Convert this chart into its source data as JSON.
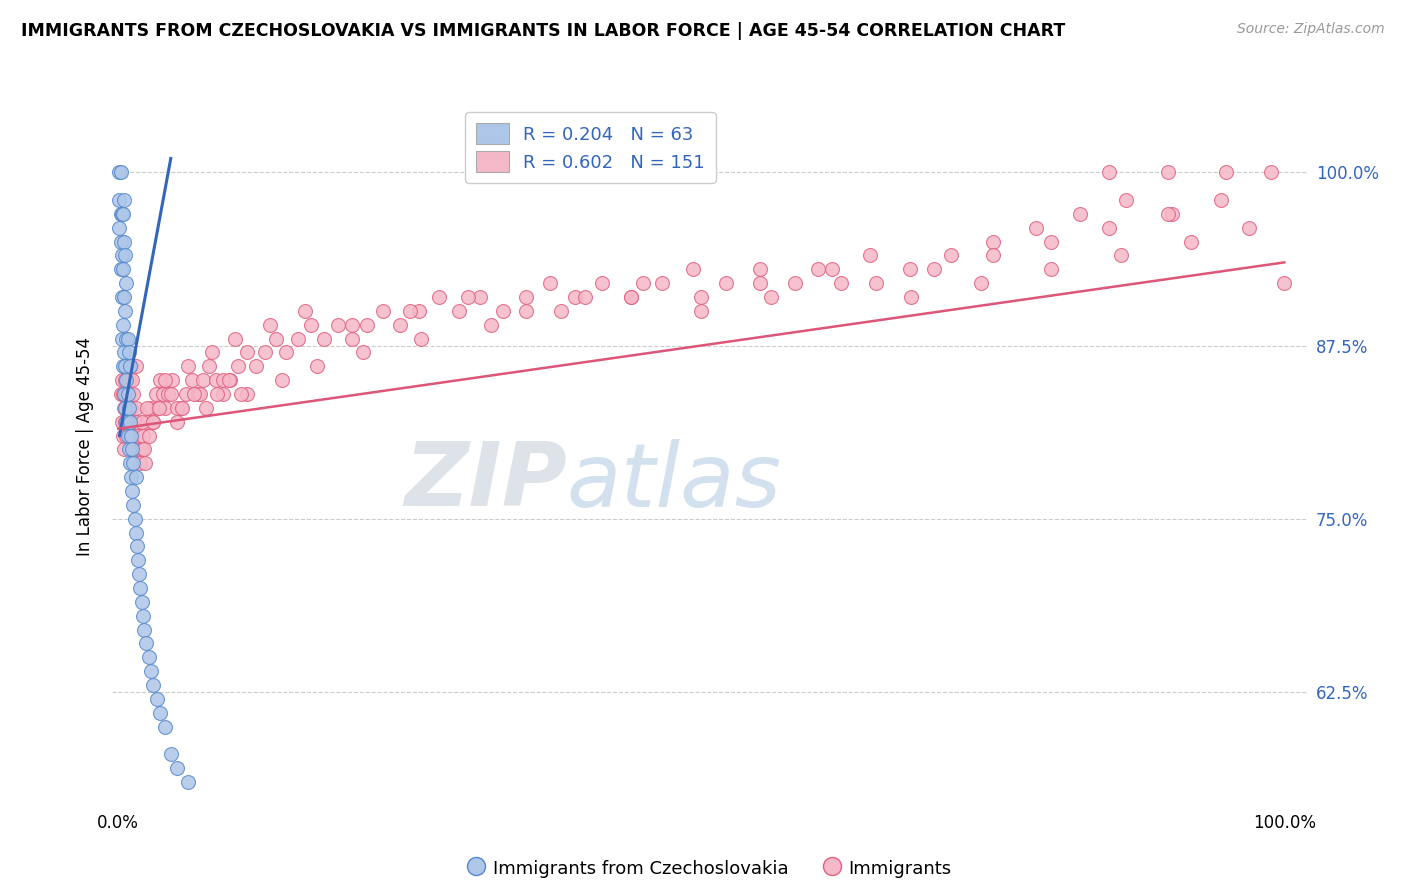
{
  "title": "IMMIGRANTS FROM CZECHOSLOVAKIA VS IMMIGRANTS IN LABOR FORCE | AGE 45-54 CORRELATION CHART",
  "source": "Source: ZipAtlas.com",
  "ylabel": "In Labor Force | Age 45-54",
  "xlim": [
    -0.005,
    1.02
  ],
  "ylim": [
    0.545,
    1.06
  ],
  "ytick_values": [
    0.625,
    0.75,
    0.875,
    1.0
  ],
  "ytick_labels": [
    "62.5%",
    "75.0%",
    "87.5%",
    "100.0%"
  ],
  "legend1_label": "R = 0.204   N = 63",
  "legend2_label": "R = 0.602   N = 151",
  "legend_label_blue": "Immigrants from Czechoslovakia",
  "legend_label_pink": "Immigrants",
  "blue_color": "#aec6e8",
  "blue_edge_color": "#5588cc",
  "blue_line_color": "#3366bb",
  "pink_color": "#f5b8c8",
  "pink_edge_color": "#e06080",
  "pink_line_color": "#dd5577",
  "watermark_zip": "ZIP",
  "watermark_atlas": "atlas",
  "blue_x": [
    0.001,
    0.001,
    0.001,
    0.002,
    0.002,
    0.002,
    0.002,
    0.003,
    0.003,
    0.003,
    0.003,
    0.004,
    0.004,
    0.004,
    0.004,
    0.005,
    0.005,
    0.005,
    0.005,
    0.005,
    0.006,
    0.006,
    0.006,
    0.006,
    0.007,
    0.007,
    0.007,
    0.007,
    0.008,
    0.008,
    0.008,
    0.009,
    0.009,
    0.009,
    0.01,
    0.01,
    0.01,
    0.011,
    0.011,
    0.012,
    0.012,
    0.013,
    0.013,
    0.014,
    0.015,
    0.015,
    0.016,
    0.017,
    0.018,
    0.019,
    0.02,
    0.021,
    0.022,
    0.024,
    0.026,
    0.028,
    0.03,
    0.033,
    0.036,
    0.04,
    0.045,
    0.05,
    0.06
  ],
  "blue_y": [
    0.96,
    0.98,
    1.0,
    0.93,
    0.95,
    0.97,
    1.0,
    0.88,
    0.91,
    0.94,
    0.97,
    0.86,
    0.89,
    0.93,
    0.97,
    0.84,
    0.87,
    0.91,
    0.95,
    0.98,
    0.83,
    0.86,
    0.9,
    0.94,
    0.82,
    0.85,
    0.88,
    0.92,
    0.81,
    0.84,
    0.88,
    0.8,
    0.83,
    0.87,
    0.79,
    0.82,
    0.86,
    0.78,
    0.81,
    0.77,
    0.8,
    0.76,
    0.79,
    0.75,
    0.74,
    0.78,
    0.73,
    0.72,
    0.71,
    0.7,
    0.69,
    0.68,
    0.67,
    0.66,
    0.65,
    0.64,
    0.63,
    0.62,
    0.61,
    0.6,
    0.58,
    0.57,
    0.56
  ],
  "pink_x": [
    0.002,
    0.003,
    0.003,
    0.004,
    0.004,
    0.005,
    0.005,
    0.006,
    0.006,
    0.007,
    0.007,
    0.008,
    0.008,
    0.009,
    0.009,
    0.01,
    0.01,
    0.011,
    0.011,
    0.012,
    0.012,
    0.013,
    0.013,
    0.014,
    0.015,
    0.015,
    0.016,
    0.017,
    0.018,
    0.019,
    0.02,
    0.021,
    0.022,
    0.023,
    0.025,
    0.026,
    0.028,
    0.03,
    0.032,
    0.034,
    0.036,
    0.038,
    0.04,
    0.043,
    0.046,
    0.05,
    0.054,
    0.058,
    0.063,
    0.068,
    0.073,
    0.078,
    0.084,
    0.09,
    0.096,
    0.103,
    0.11,
    0.118,
    0.126,
    0.135,
    0.144,
    0.154,
    0.165,
    0.176,
    0.188,
    0.2,
    0.213,
    0.227,
    0.242,
    0.258,
    0.275,
    0.292,
    0.31,
    0.33,
    0.35,
    0.37,
    0.392,
    0.415,
    0.44,
    0.466,
    0.493,
    0.521,
    0.55,
    0.58,
    0.612,
    0.645,
    0.679,
    0.714,
    0.75,
    0.787,
    0.825,
    0.864,
    0.904,
    0.946,
    0.989,
    0.85,
    0.9,
    0.95,
    1.0,
    0.04,
    0.06,
    0.08,
    0.1,
    0.13,
    0.16,
    0.2,
    0.25,
    0.3,
    0.35,
    0.4,
    0.45,
    0.5,
    0.55,
    0.6,
    0.65,
    0.7,
    0.75,
    0.8,
    0.85,
    0.9,
    0.05,
    0.07,
    0.09,
    0.11,
    0.14,
    0.17,
    0.21,
    0.26,
    0.32,
    0.38,
    0.44,
    0.5,
    0.56,
    0.62,
    0.68,
    0.74,
    0.8,
    0.86,
    0.92,
    0.97,
    0.02,
    0.025,
    0.03,
    0.035,
    0.045,
    0.055,
    0.065,
    0.075,
    0.085,
    0.095,
    0.105
  ],
  "pink_y": [
    0.84,
    0.82,
    0.85,
    0.81,
    0.84,
    0.8,
    0.83,
    0.82,
    0.85,
    0.81,
    0.84,
    0.83,
    0.86,
    0.82,
    0.85,
    0.81,
    0.84,
    0.83,
    0.86,
    0.82,
    0.85,
    0.81,
    0.84,
    0.8,
    0.83,
    0.86,
    0.82,
    0.81,
    0.8,
    0.79,
    0.8,
    0.81,
    0.8,
    0.79,
    0.82,
    0.81,
    0.83,
    0.82,
    0.84,
    0.83,
    0.85,
    0.84,
    0.83,
    0.84,
    0.85,
    0.82,
    0.83,
    0.84,
    0.85,
    0.84,
    0.85,
    0.86,
    0.85,
    0.84,
    0.85,
    0.86,
    0.87,
    0.86,
    0.87,
    0.88,
    0.87,
    0.88,
    0.89,
    0.88,
    0.89,
    0.88,
    0.89,
    0.9,
    0.89,
    0.9,
    0.91,
    0.9,
    0.91,
    0.9,
    0.91,
    0.92,
    0.91,
    0.92,
    0.91,
    0.92,
    0.93,
    0.92,
    0.93,
    0.92,
    0.93,
    0.94,
    0.93,
    0.94,
    0.95,
    0.96,
    0.97,
    0.98,
    0.97,
    0.98,
    1.0,
    1.0,
    1.0,
    1.0,
    0.92,
    0.85,
    0.86,
    0.87,
    0.88,
    0.89,
    0.9,
    0.89,
    0.9,
    0.91,
    0.9,
    0.91,
    0.92,
    0.91,
    0.92,
    0.93,
    0.92,
    0.93,
    0.94,
    0.95,
    0.96,
    0.97,
    0.83,
    0.84,
    0.85,
    0.84,
    0.85,
    0.86,
    0.87,
    0.88,
    0.89,
    0.9,
    0.91,
    0.9,
    0.91,
    0.92,
    0.91,
    0.92,
    0.93,
    0.94,
    0.95,
    0.96,
    0.82,
    0.83,
    0.82,
    0.83,
    0.84,
    0.83,
    0.84,
    0.83,
    0.84,
    0.85,
    0.84
  ],
  "blue_trend_x": [
    0.001,
    0.045
  ],
  "blue_trend_y": [
    0.81,
    1.01
  ],
  "pink_trend_x": [
    0.0,
    1.0
  ],
  "pink_trend_y": [
    0.815,
    0.935
  ]
}
